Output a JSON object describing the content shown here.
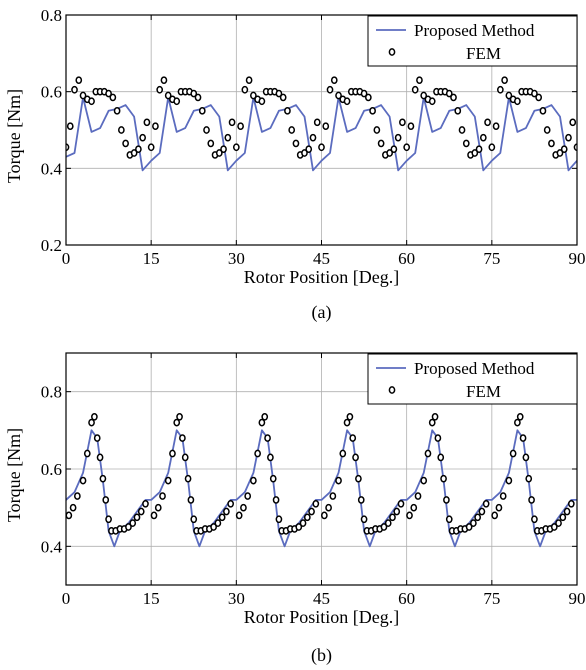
{
  "chart_data": [
    {
      "type": "line",
      "panel": "(a)",
      "xlabel": "Rotor Position [Deg.]",
      "ylabel": "Torque [Nm]",
      "xlim": [
        0,
        90
      ],
      "ylim": [
        0.2,
        0.8
      ],
      "xticks": [
        0,
        15,
        30,
        45,
        60,
        75,
        90
      ],
      "yticks": [
        0.2,
        0.4,
        0.6,
        0.8
      ],
      "xtick_labels": [
        "0",
        "15",
        "30",
        "45",
        "60",
        "75",
        "90"
      ],
      "ytick_labels": [
        "0.2",
        "0.4",
        "0.6",
        "0.8"
      ],
      "grid": true,
      "legend_position": "top-right",
      "period": 15,
      "series": [
        {
          "name": "Proposed Method",
          "style": "line",
          "color": "#5b6cbf",
          "x": [
            0,
            1.5,
            3,
            4.5,
            6,
            7.5,
            9,
            10.5,
            12,
            13.5,
            15
          ],
          "y": [
            0.43,
            0.44,
            0.585,
            0.495,
            0.505,
            0.55,
            0.555,
            0.565,
            0.535,
            0.395,
            0.42
          ]
        },
        {
          "name": "FEM",
          "style": "markers",
          "marker": "open-circle",
          "color": "#000000",
          "x": [
            0,
            0.75,
            1.5,
            2.25,
            3,
            3.75,
            4.5,
            5.25,
            6,
            6.75,
            7.5,
            8.25,
            9,
            9.75,
            10.5,
            11.25,
            12,
            12.75,
            13.5,
            14.25
          ],
          "y": [
            0.455,
            0.51,
            0.605,
            0.63,
            0.59,
            0.58,
            0.575,
            0.6,
            0.6,
            0.6,
            0.595,
            0.585,
            0.55,
            0.5,
            0.465,
            0.435,
            0.44,
            0.45,
            0.48,
            0.52
          ]
        }
      ]
    },
    {
      "type": "line",
      "panel": "(b)",
      "xlabel": "Rotor Position [Deg.]",
      "ylabel": "Torque [Nm]",
      "xlim": [
        0,
        90
      ],
      "ylim": [
        0.3,
        0.9
      ],
      "xticks": [
        0,
        15,
        30,
        45,
        60,
        75,
        90
      ],
      "yticks": [
        0.4,
        0.6,
        0.8
      ],
      "xtick_labels": [
        "0",
        "15",
        "30",
        "45",
        "60",
        "75",
        "90"
      ],
      "ytick_labels": [
        "0.4",
        "0.6",
        "0.8"
      ],
      "grid": true,
      "legend_position": "top-right",
      "period": 15,
      "series": [
        {
          "name": "Proposed Method",
          "style": "line",
          "color": "#5b6cbf",
          "x": [
            0,
            1.5,
            3,
            4.5,
            5.5,
            6.5,
            7.5,
            8.5,
            9.5,
            11,
            12.5,
            14,
            15
          ],
          "y": [
            0.52,
            0.54,
            0.59,
            0.7,
            0.68,
            0.57,
            0.44,
            0.4,
            0.44,
            0.46,
            0.49,
            0.52,
            0.52
          ]
        },
        {
          "name": "FEM",
          "style": "markers",
          "marker": "open-circle",
          "color": "#000000",
          "x": [
            0.5,
            1.25,
            2,
            3,
            3.75,
            4.5,
            5,
            5.5,
            6,
            6.5,
            7,
            7.5,
            8,
            8.75,
            9.5,
            10.25,
            11,
            11.75,
            12.5,
            13.25,
            14
          ],
          "y": [
            0.48,
            0.5,
            0.53,
            0.57,
            0.64,
            0.72,
            0.735,
            0.68,
            0.63,
            0.575,
            0.52,
            0.47,
            0.44,
            0.44,
            0.445,
            0.445,
            0.45,
            0.46,
            0.475,
            0.49,
            0.51
          ]
        }
      ]
    }
  ],
  "captions": [
    "(a)",
    "(b)"
  ],
  "legend": {
    "labels": [
      "Proposed Method",
      "FEM"
    ]
  }
}
